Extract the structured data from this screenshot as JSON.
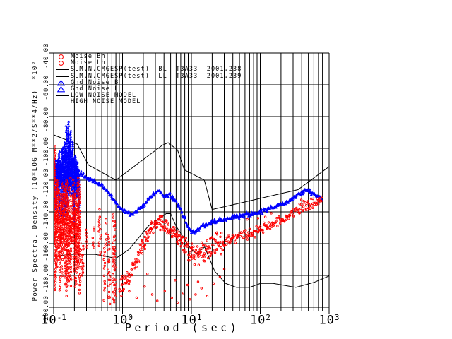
{
  "axes": {
    "xlabel": "Period (sec)",
    "ylabel_full": "Power Spectral Density (10*LOG M**2/S**4/Hz)  *10⁰",
    "y_ticks": [
      "-40.00",
      "-60.00",
      "-80.00",
      "-100.00",
      "-120.00",
      "-140.00",
      "-160.00",
      "-180.00",
      "-200.00"
    ],
    "x_ticks": [
      {
        "base": "10",
        "exp": "-1"
      },
      {
        "base": "10",
        "exp": "0"
      },
      {
        "base": "10",
        "exp": "1"
      },
      {
        "base": "10",
        "exp": "2"
      },
      {
        "base": "10",
        "exp": "3"
      }
    ]
  },
  "legend": {
    "items": [
      {
        "label": "Noise Bh",
        "symbol": "red-circle"
      },
      {
        "label": "Noise Lh",
        "symbol": "red-circle"
      },
      {
        "label": "SLM.N.CMGESP(test)  BL  T3A33  2001,238",
        "symbol": "line"
      },
      {
        "label": "SLM.N.CMGESP(test)  LL  T3A33  2001,239",
        "symbol": "line"
      },
      {
        "label": "Gnd Noise B",
        "symbol": "blue-triangle"
      },
      {
        "label": "Gnd Noise L",
        "symbol": "blue-triangle"
      },
      {
        "label": "LOW NOISE MODEL",
        "symbol": "line"
      },
      {
        "label": "HIGH NOISE MODEL",
        "symbol": "line"
      }
    ]
  },
  "colors": {
    "red": "#ff0000",
    "blue": "#0000ff",
    "black": "#000000",
    "background": "#ffffff"
  },
  "chart_data": {
    "type": "scatter",
    "title": "",
    "xlabel": "Period (sec)",
    "ylabel": "Power Spectral Density (10*LOG M**2/S**4/Hz)",
    "x_scale": "log",
    "x_range": [
      0.1,
      1000
    ],
    "y_range": [
      -200,
      -40
    ],
    "y_tick_step": 20,
    "grid": true,
    "series": [
      {
        "name": "Gnd Noise (B/L)",
        "color": "#0000ff",
        "marker": "triangle",
        "cluster": {
          "period_range": [
            0.1,
            0.245
          ],
          "core_db": [
            -112,
            -118
          ],
          "spike_top_db": -84,
          "spike_center_period": 0.165,
          "bottom_db": -144
        },
        "backbone": [
          [
            0.24,
            -116.0
          ],
          [
            0.283,
            -117.8
          ],
          [
            0.341,
            -120.0
          ],
          [
            0.412,
            -121.8
          ],
          [
            0.511,
            -124.4
          ],
          [
            0.645,
            -128.9
          ],
          [
            0.815,
            -134.7
          ],
          [
            1.04,
            -139.1
          ],
          [
            1.31,
            -142.2
          ],
          [
            1.58,
            -140.0
          ],
          [
            1.91,
            -136.9
          ],
          [
            2.37,
            -132.4
          ],
          [
            2.8,
            -128.4
          ],
          [
            3.15,
            -126.7
          ],
          [
            3.62,
            -128.0
          ],
          [
            4.18,
            -130.2
          ],
          [
            4.83,
            -129.3
          ],
          [
            5.56,
            -132.0
          ],
          [
            6.41,
            -135.6
          ],
          [
            7.4,
            -141.3
          ],
          [
            8.35,
            -146.7
          ],
          [
            9.42,
            -150.7
          ],
          [
            10.6,
            -152.4
          ],
          [
            12.4,
            -150.7
          ],
          [
            14.9,
            -148.4
          ],
          [
            18.1,
            -147.6
          ],
          [
            22.3,
            -146.2
          ],
          [
            28.1,
            -144.9
          ],
          [
            37.3,
            -143.6
          ],
          [
            50.6,
            -142.7
          ],
          [
            68.7,
            -141.3
          ],
          [
            93.9,
            -140.4
          ],
          [
            124,
            -138.7
          ],
          [
            166,
            -136.9
          ],
          [
            215,
            -135.1
          ],
          [
            273,
            -132.9
          ],
          [
            329,
            -130.2
          ],
          [
            389,
            -128.0
          ],
          [
            450,
            -126.7
          ],
          [
            519,
            -127.1
          ],
          [
            600,
            -128.9
          ],
          [
            693,
            -130.7
          ],
          [
            780,
            -131.6
          ]
        ]
      },
      {
        "name": "Noise (Bh/Lh)",
        "color": "#ff0000",
        "marker": "circle",
        "cluster": {
          "period_range": [
            0.1,
            0.245
          ],
          "top_db": -119,
          "bottom_db": -196,
          "edge_spike_top_db": -99
        },
        "streak_zone": {
          "period_range": [
            0.25,
            1.1
          ],
          "top_db_range": [
            -138,
            -172
          ],
          "bottom_db_limit": -197,
          "count": 14
        },
        "backbone": [
          [
            0.92,
            -188.0
          ],
          [
            1.11,
            -183.6
          ],
          [
            1.34,
            -177.8
          ],
          [
            1.62,
            -170.2
          ],
          [
            1.96,
            -162.2
          ],
          [
            2.37,
            -155.1
          ],
          [
            2.87,
            -148.9
          ],
          [
            3.37,
            -146.2
          ],
          [
            3.98,
            -148.0
          ],
          [
            4.83,
            -151.6
          ],
          [
            5.81,
            -155.1
          ],
          [
            7.03,
            -158.7
          ],
          [
            8.46,
            -162.7
          ],
          [
            10.0,
            -165.3
          ],
          [
            12.4,
            -166.2
          ],
          [
            15.7,
            -164.0
          ],
          [
            19.8,
            -161.3
          ],
          [
            25.2,
            -159.6
          ],
          [
            33.5,
            -157.8
          ],
          [
            45.5,
            -156.4
          ],
          [
            61.5,
            -154.7
          ],
          [
            81.9,
            -152.9
          ],
          [
            109,
            -150.7
          ],
          [
            145,
            -148.0
          ],
          [
            192,
            -145.3
          ],
          [
            249,
            -142.7
          ],
          [
            316,
            -140.0
          ],
          [
            400,
            -137.8
          ],
          [
            495,
            -135.6
          ],
          [
            610,
            -133.8
          ],
          [
            720,
            -132.9
          ],
          [
            795,
            -132.4
          ]
        ],
        "outliers": [
          [
            1.25,
            -190
          ],
          [
            1.6,
            -194
          ],
          [
            2.1,
            -187
          ],
          [
            2.7,
            -192
          ],
          [
            3.2,
            -196
          ],
          [
            4.1,
            -190
          ],
          [
            5.2,
            -194
          ],
          [
            6.3,
            -197
          ],
          [
            7.6,
            -191
          ],
          [
            9.5,
            -195
          ],
          [
            11.5,
            -192
          ],
          [
            14,
            -188
          ],
          [
            17,
            -193
          ],
          [
            21,
            -185
          ],
          [
            26,
            -181
          ],
          [
            2.3,
            -179
          ],
          [
            5.8,
            -183
          ],
          [
            8.8,
            -186
          ],
          [
            12.5,
            -184
          ],
          [
            30,
            -176
          ]
        ]
      },
      {
        "name": "LOW NOISE MODEL",
        "color": "#000000",
        "type": "line",
        "points": [
          [
            0.1,
            -168.0
          ],
          [
            0.17,
            -166.7
          ],
          [
            0.4,
            -166.7
          ],
          [
            0.8,
            -169.2
          ],
          [
            1.24,
            -163.7
          ],
          [
            2.4,
            -148.6
          ],
          [
            4.3,
            -141.1
          ],
          [
            5.0,
            -141.1
          ],
          [
            6.0,
            -149.0
          ],
          [
            10.0,
            -163.8
          ],
          [
            12.0,
            -166.2
          ],
          [
            15.6,
            -162.1
          ],
          [
            21.9,
            -177.5
          ],
          [
            31.6,
            -185.0
          ],
          [
            45.0,
            -187.5
          ],
          [
            70.0,
            -187.5
          ],
          [
            101.0,
            -185.0
          ],
          [
            154.0,
            -185.0
          ],
          [
            328.0,
            -187.5
          ],
          [
            600.0,
            -184.4
          ],
          [
            1000.0,
            -180.3
          ]
        ]
      },
      {
        "name": "HIGH NOISE MODEL",
        "color": "#000000",
        "type": "line",
        "points": [
          [
            0.1,
            -91.5
          ],
          [
            0.22,
            -97.4
          ],
          [
            0.32,
            -110.5
          ],
          [
            0.8,
            -120.0
          ],
          [
            3.8,
            -98.0
          ],
          [
            4.6,
            -96.5
          ],
          [
            6.3,
            -101.0
          ],
          [
            7.9,
            -113.5
          ],
          [
            15.4,
            -120.0
          ],
          [
            20.0,
            -138.5
          ],
          [
            354.0,
            -126.0
          ],
          [
            1000.0,
            -111.5
          ]
        ]
      }
    ]
  }
}
